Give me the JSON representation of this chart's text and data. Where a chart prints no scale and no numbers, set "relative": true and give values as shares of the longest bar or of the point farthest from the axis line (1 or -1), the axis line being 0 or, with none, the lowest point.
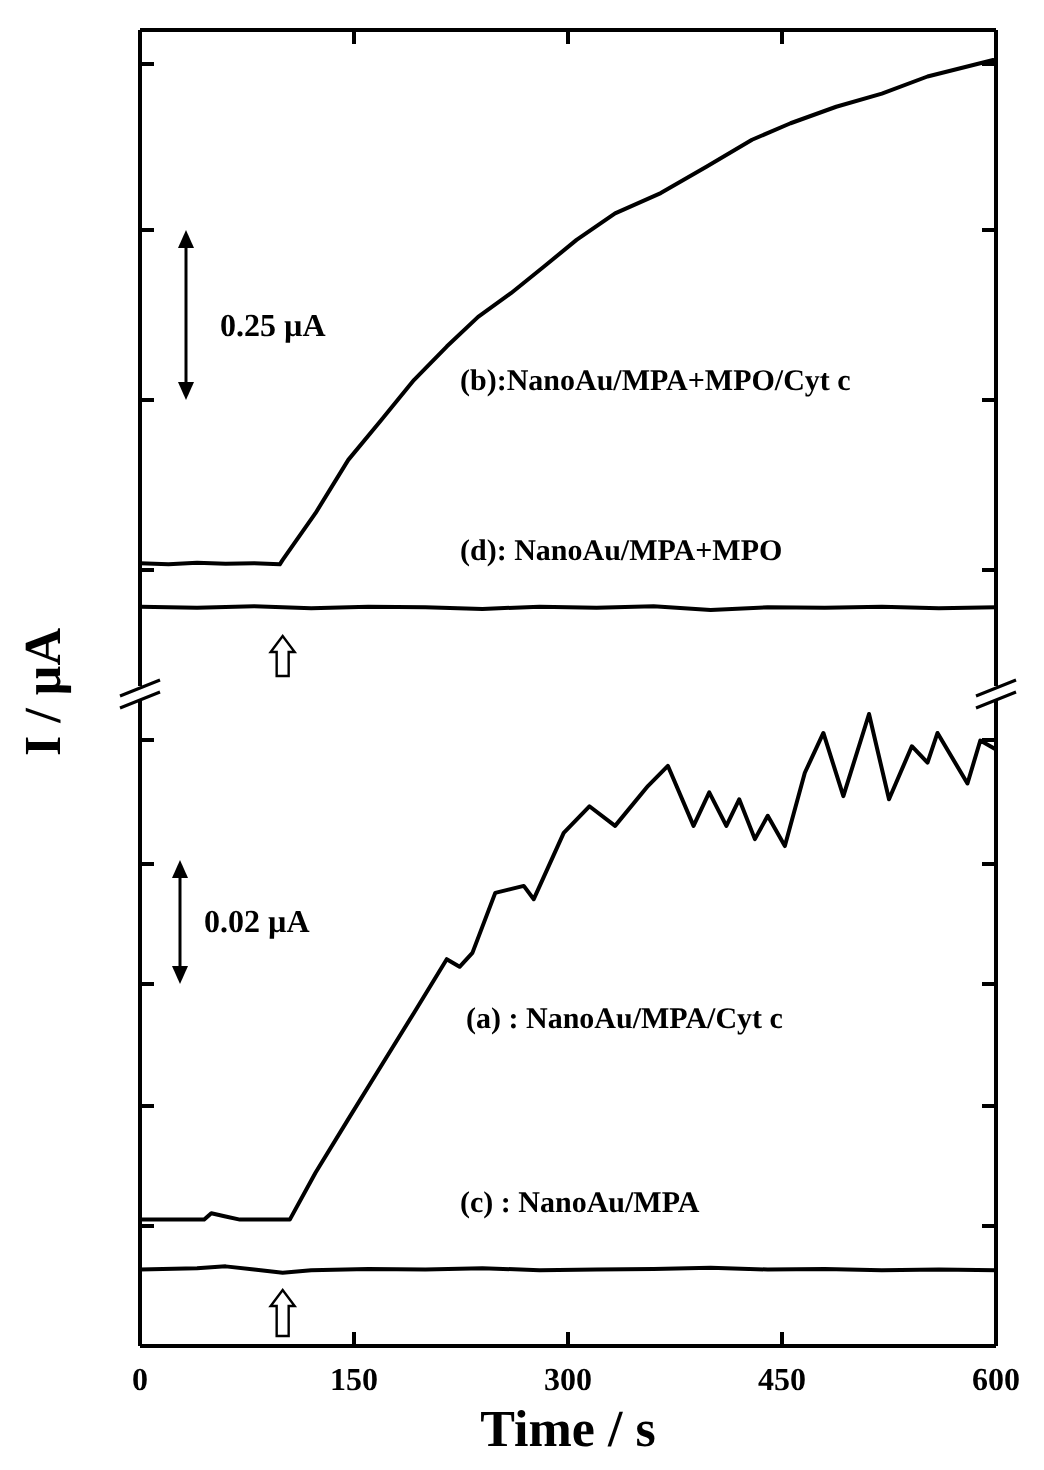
{
  "chart_data": [
    {
      "type": "line",
      "relative": true,
      "xlim": [
        0,
        600
      ],
      "xticks": [
        0,
        150,
        300,
        450,
        600
      ],
      "tick_labels": false,
      "legend": false,
      "grid": false,
      "marker": "none",
      "line_style": "solid",
      "annotations": [
        "0.25 µA"
      ],
      "series": [
        {
          "name": "(b):NanoAu/MPA+MPO/Cyt c",
          "color": "#000000",
          "x": [
            0,
            20,
            40,
            60,
            80,
            98,
            100,
            123,
            146,
            169,
            192,
            215,
            237,
            260,
            283,
            306,
            333,
            365,
            397,
            429,
            456,
            488,
            520,
            552,
            598,
            600
          ],
          "values": [
            0.085,
            0.083,
            0.086,
            0.084,
            0.085,
            0.083,
            0.091,
            0.176,
            0.273,
            0.345,
            0.418,
            0.479,
            0.533,
            0.576,
            0.624,
            0.673,
            0.721,
            0.758,
            0.806,
            0.855,
            0.885,
            0.915,
            0.939,
            0.97,
            1.0,
            0.99
          ]
        },
        {
          "name": "(d): NanoAu/MPA+MPO",
          "color": "#000000",
          "x": [
            0,
            40,
            80,
            120,
            160,
            200,
            240,
            280,
            320,
            360,
            400,
            440,
            480,
            520,
            560,
            600
          ],
          "values": [
            0.006,
            0.004,
            0.007,
            0.003,
            0.006,
            0.005,
            0.002,
            0.006,
            0.004,
            0.007,
            0.0,
            0.005,
            0.004,
            0.006,
            0.003,
            0.005
          ]
        }
      ]
    },
    {
      "type": "line",
      "relative": true,
      "xlim": [
        0,
        600
      ],
      "xticks": [
        0,
        150,
        300,
        450,
        600
      ],
      "tick_labels": "x",
      "xlabel": "Time / s",
      "ylabel": "I / µA",
      "legend": false,
      "grid": false,
      "marker": "none",
      "line_style": "solid",
      "annotations": [
        "0.02 µA"
      ],
      "series": [
        {
          "name": "(a) :  NanoAu/MPA/Cyt c",
          "color": "#000000",
          "x": [
            0,
            30,
            45,
            50,
            60,
            70,
            90,
            105,
            123,
            146,
            169,
            192,
            215,
            224,
            233,
            249,
            269,
            276,
            297,
            315,
            333,
            356,
            370,
            388,
            399,
            411,
            420,
            431,
            440,
            452,
            466,
            479,
            493,
            511,
            525,
            541,
            552,
            559,
            580,
            589,
            600
          ],
          "values": [
            0.2,
            0.2,
            0.2,
            0.21,
            0.205,
            0.2,
            0.2,
            0.2,
            0.274,
            0.359,
            0.443,
            0.527,
            0.612,
            0.6,
            0.622,
            0.717,
            0.728,
            0.707,
            0.812,
            0.854,
            0.823,
            0.886,
            0.918,
            0.823,
            0.876,
            0.823,
            0.865,
            0.802,
            0.839,
            0.791,
            0.907,
            0.97,
            0.87,
            1.0,
            0.865,
            0.949,
            0.923,
            0.97,
            0.89,
            0.958,
            0.944
          ]
        },
        {
          "name": "(c) :  NanoAu/MPA",
          "color": "#000000",
          "x": [
            0,
            40,
            60,
            80,
            100,
            120,
            160,
            200,
            240,
            280,
            320,
            360,
            400,
            440,
            480,
            520,
            560,
            600
          ],
          "values": [
            0.121,
            0.123,
            0.126,
            0.121,
            0.116,
            0.12,
            0.122,
            0.121,
            0.123,
            0.12,
            0.121,
            0.122,
            0.124,
            0.121,
            0.122,
            0.12,
            0.121,
            0.12
          ]
        }
      ]
    }
  ]
}
